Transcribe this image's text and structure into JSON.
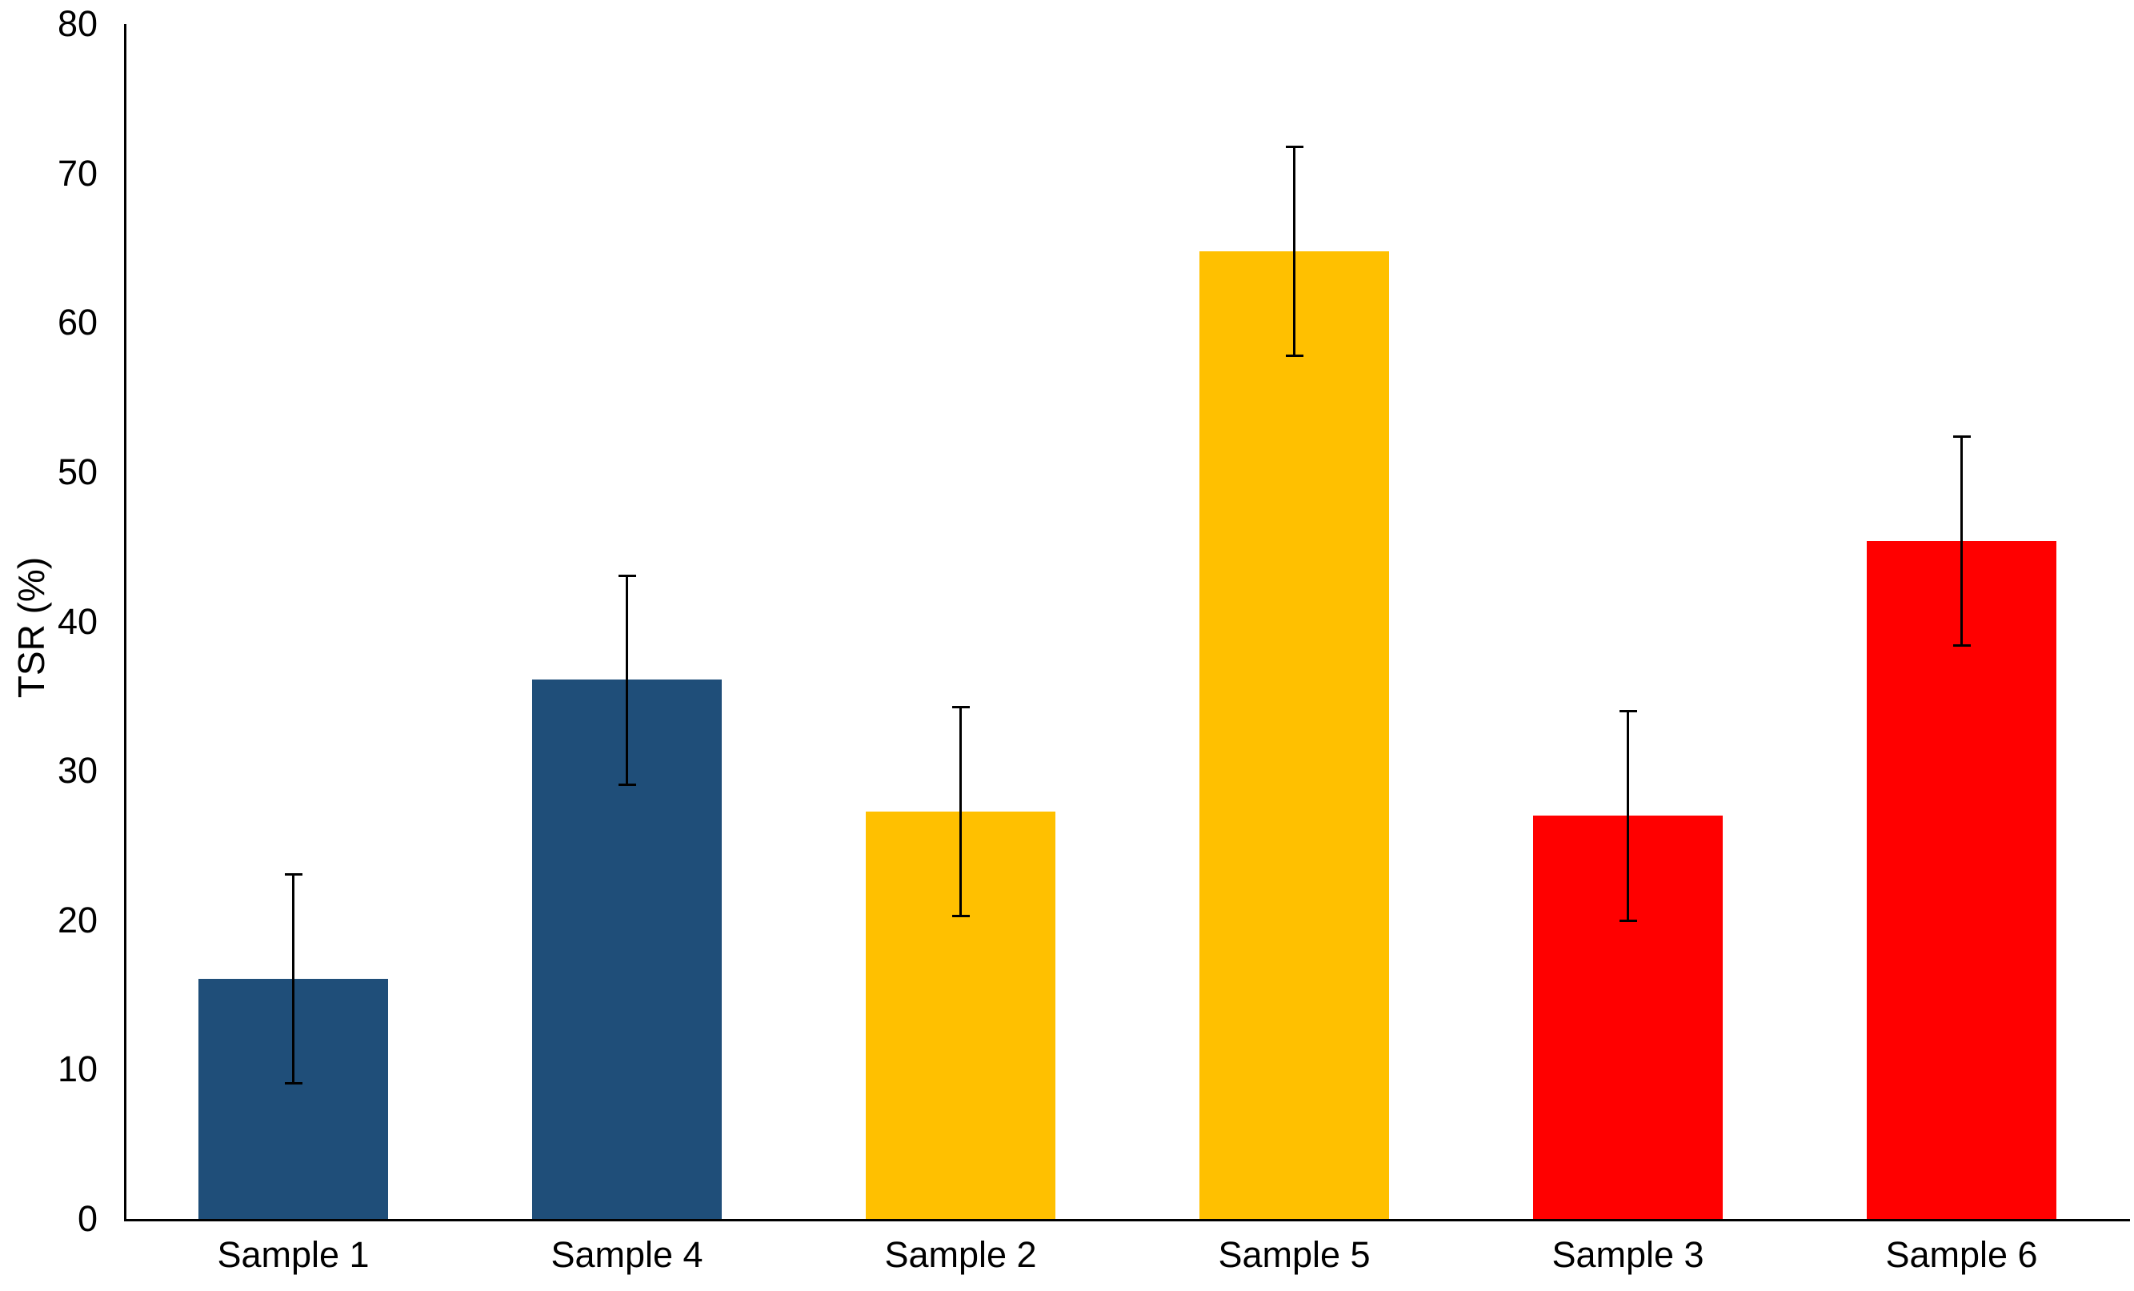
{
  "chart_data": {
    "type": "bar",
    "title": "",
    "xlabel": "",
    "ylabel": "TSR (%)",
    "ylim": [
      0,
      80
    ],
    "yticks": [
      0,
      10,
      20,
      30,
      40,
      50,
      60,
      70,
      80
    ],
    "grid": false,
    "legend": false,
    "categories": [
      "Sample 1",
      "Sample 4",
      "Sample 2",
      "Sample 5",
      "Sample 3",
      "Sample 6"
    ],
    "series": [
      {
        "name": "TSR",
        "values": [
          16.1,
          36.1,
          27.3,
          64.8,
          27.0,
          45.4
        ],
        "error_plus": [
          7.0,
          7.0,
          7.0,
          7.0,
          7.0,
          7.0
        ],
        "error_minus": [
          7.0,
          7.0,
          7.0,
          7.0,
          7.0,
          7.0
        ],
        "bar_colors": [
          "#1F4E79",
          "#1F4E79",
          "#FFC000",
          "#FFC000",
          "#FF0000",
          "#FF0000"
        ]
      }
    ],
    "colors": {
      "dark_blue": "#1F4E79",
      "yellow": "#FFC000",
      "red": "#FF0000",
      "axis": "#000000",
      "background": "#FFFFFF"
    }
  }
}
